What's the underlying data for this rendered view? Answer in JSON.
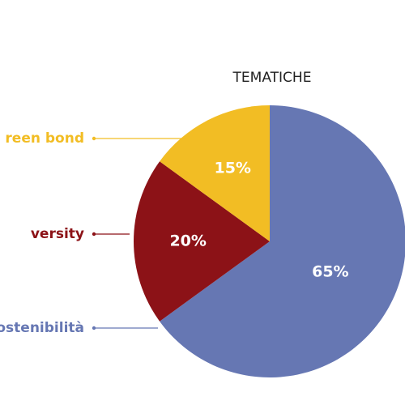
{
  "chart_data": {
    "type": "pie",
    "title": "TEMATICHE",
    "categories": [
      "ostenibilità",
      "versity",
      "reen bond"
    ],
    "values": [
      65,
      20,
      15
    ],
    "value_labels": [
      "65%",
      "20%",
      "15%"
    ],
    "colors": [
      "#6677b3",
      "#8c1217",
      "#f2bd24"
    ]
  }
}
